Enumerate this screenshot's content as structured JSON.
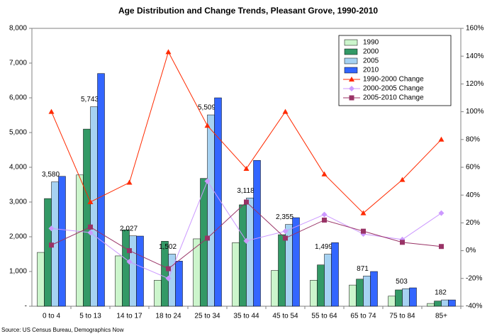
{
  "chart_data": {
    "type": "bar_line",
    "title": "Age Distribution and Change Trends, Pleasant Grove, 1990-2010",
    "source": "Source:  US Census Bureau, Demographics Now",
    "categories": [
      "0 to 4",
      "5 to 13",
      "14 to 17",
      "18 to 24",
      "25 to 34",
      "35 to 44",
      "45 to 54",
      "55 to 64",
      "65 to 74",
      "75 to 84",
      "85+"
    ],
    "series": [
      {
        "name": "1990",
        "color": "#ccf5cc",
        "values": [
          1550,
          3780,
          1450,
          750,
          1940,
          1830,
          1030,
          750,
          610,
          290,
          80
        ]
      },
      {
        "name": "2000",
        "color": "#339966",
        "values": [
          3100,
          5100,
          2200,
          1870,
          3680,
          2920,
          2060,
          1190,
          780,
          470,
          150
        ]
      },
      {
        "name": "2005",
        "color": "#a6d2f2",
        "values": [
          3580,
          5743,
          2027,
          1502,
          5509,
          3118,
          2355,
          1499,
          871,
          503,
          182
        ],
        "value_labels": [
          "3,580",
          "5,743",
          "2,027",
          "1,502",
          "5,509",
          "3,118",
          "2,355",
          "1,499",
          "871",
          "503",
          "182"
        ]
      },
      {
        "name": "2010",
        "color": "#3366ff",
        "values": [
          3740,
          6700,
          2020,
          1300,
          6000,
          4200,
          2550,
          1830,
          1000,
          530,
          182
        ]
      },
      {
        "name": "1990-2000 Change",
        "color": "#ff2a00",
        "axis": "y2",
        "marker": "triangle",
        "values": [
          100,
          35,
          49,
          143,
          90,
          59,
          100,
          55,
          27,
          51,
          80
        ]
      },
      {
        "name": "2000-2005 Change",
        "color": "#cc99ff",
        "axis": "y2",
        "marker": "diamond",
        "values": [
          16,
          13,
          -8,
          -20,
          50,
          7,
          14,
          26,
          12,
          8,
          27
        ]
      },
      {
        "name": "2005-2010 Change",
        "color": "#993366",
        "axis": "y2",
        "marker": "square",
        "values": [
          4,
          17,
          0,
          -13,
          9,
          35,
          9,
          22,
          14,
          6,
          3
        ]
      }
    ],
    "ylim": [
      0,
      8000
    ],
    "yticks": [
      {
        "value": 0,
        "label": "-"
      },
      {
        "value": 1000,
        "label": "1,000"
      },
      {
        "value": 2000,
        "label": "2,000"
      },
      {
        "value": 3000,
        "label": "3,000"
      },
      {
        "value": 4000,
        "label": "4,000"
      },
      {
        "value": 5000,
        "label": "5,000"
      },
      {
        "value": 6000,
        "label": "6,000"
      },
      {
        "value": 7000,
        "label": "7,000"
      },
      {
        "value": 8000,
        "label": "8,000"
      }
    ],
    "y2lim": [
      -40,
      160
    ],
    "y2ticks": [
      {
        "value": -40,
        "label": "-40%"
      },
      {
        "value": -20,
        "label": "-20%"
      },
      {
        "value": 0,
        "label": "0%"
      },
      {
        "value": 20,
        "label": "20%"
      },
      {
        "value": 40,
        "label": "40%"
      },
      {
        "value": 60,
        "label": "60%"
      },
      {
        "value": 80,
        "label": "80%"
      },
      {
        "value": 100,
        "label": "100%"
      },
      {
        "value": 120,
        "label": "120%"
      },
      {
        "value": 140,
        "label": "140%"
      },
      {
        "value": 160,
        "label": "160%"
      }
    ],
    "legend": "top-right"
  }
}
